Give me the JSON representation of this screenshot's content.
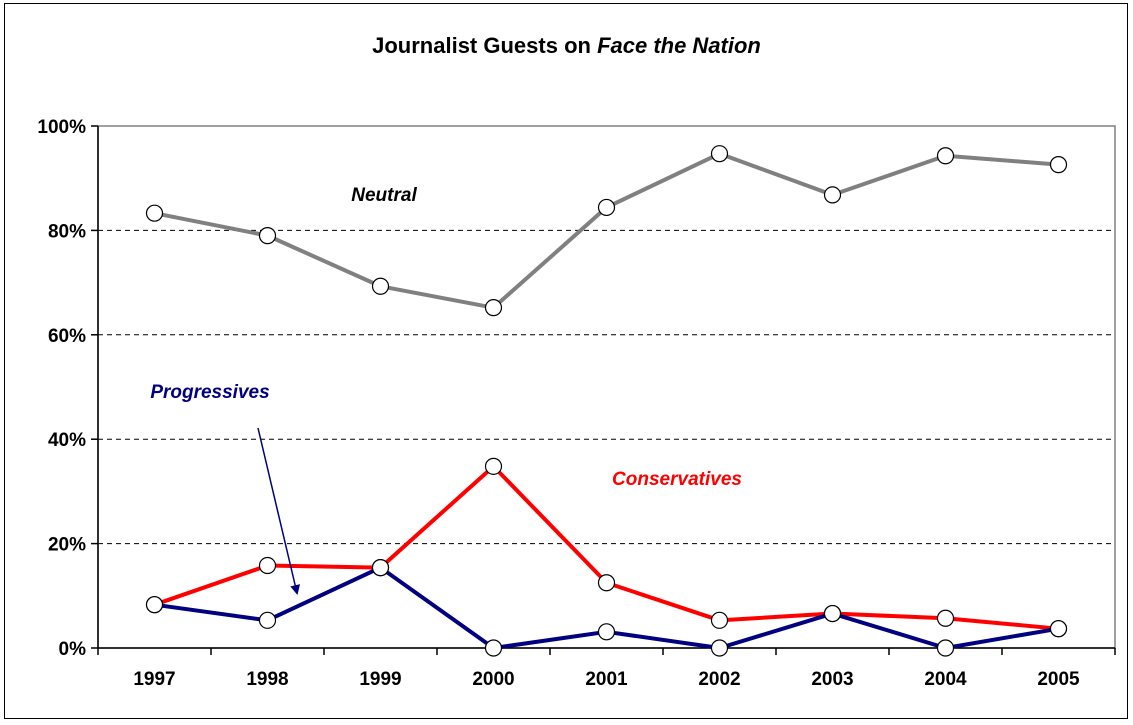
{
  "chart_data": {
    "type": "line",
    "title": {
      "prefix": "Journalist Guests on ",
      "italic": "Face the Nation"
    },
    "categories": [
      "1997",
      "1998",
      "1999",
      "2000",
      "2001",
      "2002",
      "2003",
      "2004",
      "2005"
    ],
    "ylim": [
      0,
      100
    ],
    "ytick_labels": [
      "0%",
      "20%",
      "40%",
      "60%",
      "80%",
      "100%"
    ],
    "ytick_values": [
      0,
      20,
      40,
      60,
      80,
      100
    ],
    "grid": "horizontal dashed",
    "series": [
      {
        "name": "Neutral",
        "color": "#808080",
        "values": [
          83.3,
          79.0,
          69.3,
          65.2,
          84.4,
          94.7,
          86.8,
          94.3,
          92.6
        ]
      },
      {
        "name": "Conservatives",
        "color": "#ff0000",
        "values": [
          8.3,
          15.8,
          15.4,
          34.8,
          12.5,
          5.3,
          6.6,
          5.7,
          3.7
        ]
      },
      {
        "name": "Progressives",
        "color": "#000080",
        "values": [
          8.3,
          5.3,
          15.4,
          0.0,
          3.1,
          0.0,
          6.6,
          0.0,
          3.7
        ]
      }
    ],
    "annotations": [
      {
        "text": "Neutral",
        "color": "#000000"
      },
      {
        "text": "Conservatives",
        "color": "#ff0000"
      },
      {
        "text": "Progressives",
        "color": "#000080",
        "arrow": true
      }
    ]
  }
}
